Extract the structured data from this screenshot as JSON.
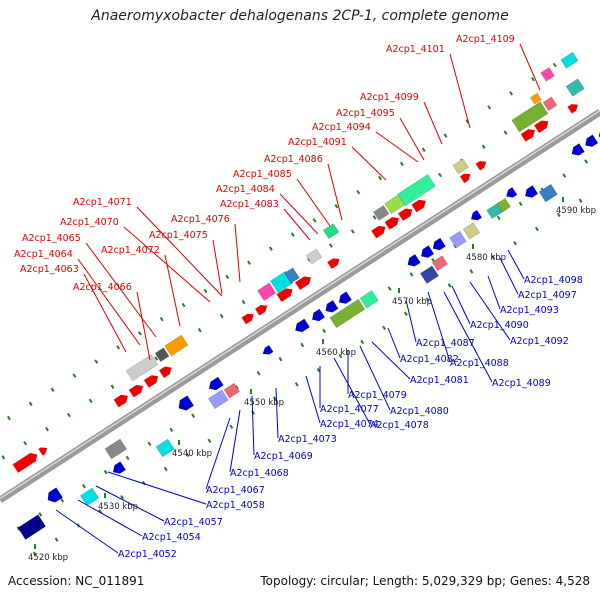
{
  "title": "Anaeromyxobacter dehalogenans 2CP-1, complete genome",
  "footer": {
    "accession": "Accession: NC_011891",
    "summary": "Topology: circular; Length: 5,029,329 bp; Genes: 4,528"
  },
  "colors": {
    "backbone": "#9a9a9a",
    "forward_label": "#dd0000",
    "reverse_label": "#0000cc",
    "tick": "#208020"
  },
  "kbp_ticks": [
    "4520 kbp",
    "4530 kbp",
    "4540 kbp",
    "4550 kbp",
    "4560 kbp",
    "4570 kbp",
    "4580 kbp",
    "4590 kbp"
  ],
  "forward_labels": [
    "A2cp1_4063",
    "A2cp1_4064",
    "A2cp1_4065",
    "A2cp1_4066",
    "A2cp1_4070",
    "A2cp1_4071",
    "A2cp1_4072",
    "A2cp1_4075",
    "A2cp1_4076",
    "A2cp1_4083",
    "A2cp1_4084",
    "A2cp1_4085",
    "A2cp1_4086",
    "A2cp1_4091",
    "A2cp1_4094",
    "A2cp1_4095",
    "A2cp1_4099",
    "A2cp1_4101",
    "A2cp1_4109"
  ],
  "reverse_labels": [
    "A2cp1_4052",
    "A2cp1_4054",
    "A2cp1_4057",
    "A2cp1_4058",
    "A2cp1_4067",
    "A2cp1_4068",
    "A2cp1_4069",
    "A2cp1_4073",
    "A2cp1_4074",
    "A2cp1_4077",
    "A2cp1_4078",
    "A2cp1_4079",
    "A2cp1_4080",
    "A2cp1_4081",
    "A2cp1_4082",
    "A2cp1_4087",
    "A2cp1_4088",
    "A2cp1_4089",
    "A2cp1_4090",
    "A2cp1_4092",
    "A2cp1_4093",
    "A2cp1_4097",
    "A2cp1_4098"
  ]
}
